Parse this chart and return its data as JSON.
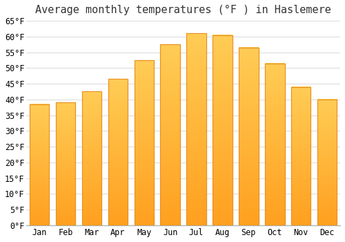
{
  "title": "Average monthly temperatures (°F ) in Haslemere",
  "months": [
    "Jan",
    "Feb",
    "Mar",
    "Apr",
    "May",
    "Jun",
    "Jul",
    "Aug",
    "Sep",
    "Oct",
    "Nov",
    "Dec"
  ],
  "values": [
    38.5,
    39.0,
    42.5,
    46.5,
    52.5,
    57.5,
    61.0,
    60.5,
    56.5,
    51.5,
    44.0,
    40.0
  ],
  "bar_color_top": "#FFCC44",
  "bar_color_bottom": "#FFA020",
  "bar_edge_color": "#E89020",
  "ylim": [
    0,
    65
  ],
  "yticks": [
    0,
    5,
    10,
    15,
    20,
    25,
    30,
    35,
    40,
    45,
    50,
    55,
    60,
    65
  ],
  "background_color": "#ffffff",
  "plot_bg_color": "#ffffff",
  "grid_color": "#dddddd",
  "title_fontsize": 11,
  "tick_fontsize": 8.5,
  "bar_width": 0.75
}
